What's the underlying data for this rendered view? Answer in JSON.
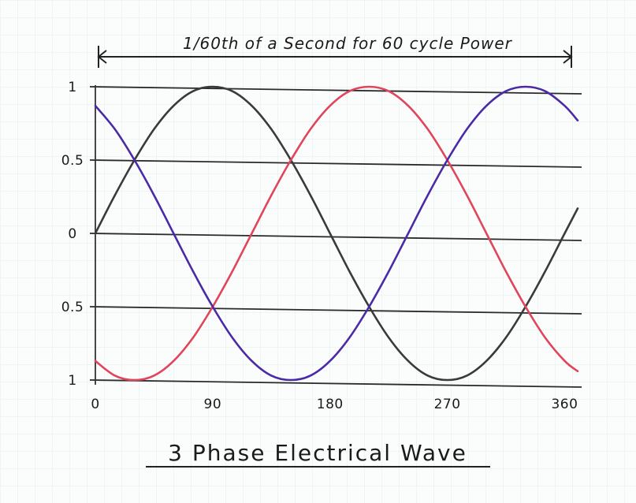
{
  "chart_data": {
    "type": "line",
    "title": "3 Phase Electrical Wave",
    "header_note": "1/60th of a Second for 60 cycle Power",
    "xlabel": "",
    "ylabel": "",
    "x_ticks": [
      "0",
      "90",
      "180",
      "270",
      "360"
    ],
    "y_ticks": [
      "1",
      "0.5",
      "0",
      "0.5",
      "1"
    ],
    "xlim": [
      0,
      370
    ],
    "ylim": [
      -1,
      1
    ],
    "grid": "horizontal",
    "x": [
      0,
      15,
      30,
      45,
      60,
      75,
      90,
      105,
      120,
      135,
      150,
      165,
      180,
      195,
      210,
      225,
      240,
      255,
      270,
      285,
      300,
      315,
      330,
      345,
      360,
      370
    ],
    "series": [
      {
        "color": "#3a3a3a",
        "values": [
          0.0,
          0.26,
          0.5,
          0.71,
          0.87,
          0.97,
          1.0,
          0.97,
          0.87,
          0.71,
          0.5,
          0.26,
          0.0,
          -0.26,
          -0.5,
          -0.71,
          -0.87,
          -0.97,
          -1.0,
          -0.97,
          -0.87,
          -0.71,
          -0.5,
          -0.26,
          0.0,
          0.17
        ]
      },
      {
        "color": "#e0455c",
        "values": [
          -0.87,
          -0.97,
          -1.0,
          -0.97,
          -0.87,
          -0.71,
          -0.5,
          -0.26,
          0.0,
          0.26,
          0.5,
          0.71,
          0.87,
          0.97,
          1.0,
          0.97,
          0.87,
          0.71,
          0.5,
          0.26,
          0.0,
          -0.26,
          -0.5,
          -0.71,
          -0.87,
          -0.94
        ]
      },
      {
        "color": "#4b2aa8",
        "values": [
          0.87,
          0.71,
          0.5,
          0.26,
          0.0,
          -0.26,
          -0.5,
          -0.71,
          -0.87,
          -0.97,
          -1.0,
          -0.97,
          -0.87,
          -0.71,
          -0.5,
          -0.26,
          0.0,
          0.26,
          0.5,
          0.71,
          0.87,
          0.97,
          1.0,
          0.97,
          0.87,
          0.77
        ]
      }
    ]
  }
}
